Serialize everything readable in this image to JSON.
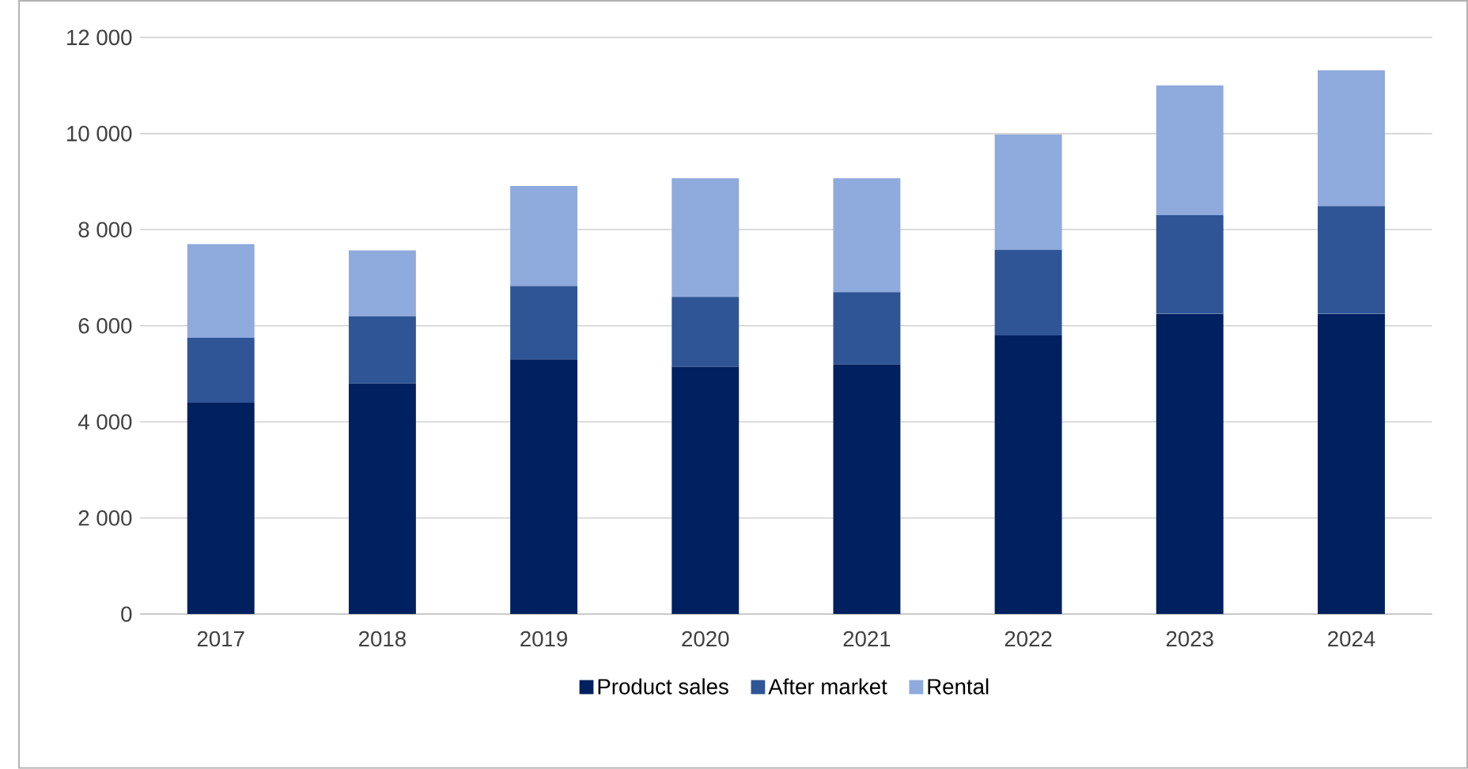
{
  "chart_data": {
    "type": "bar",
    "stacked": true,
    "categories": [
      "2017",
      "2018",
      "2019",
      "2020",
      "2021",
      "2022",
      "2023",
      "2024"
    ],
    "series": [
      {
        "name": "Product sales",
        "color": "#002060",
        "values": [
          4400,
          4800,
          5300,
          5150,
          5200,
          5800,
          6250,
          6250
        ]
      },
      {
        "name": "After market",
        "color": "#2f5597",
        "values": [
          1350,
          1400,
          1530,
          1450,
          1500,
          1780,
          2050,
          2240
        ]
      },
      {
        "name": "Rental",
        "color": "#8faadc",
        "values": [
          1950,
          1370,
          2080,
          2470,
          2370,
          2400,
          2700,
          2830
        ]
      }
    ],
    "ylim": [
      0,
      12000
    ],
    "yticks": [
      0,
      {
        "value": 2000,
        "label": "2 000"
      },
      {
        "value": 4000,
        "label": "4 000"
      },
      {
        "value": 6000,
        "label": "6 000"
      },
      {
        "value": 8000,
        "label": "8 000"
      },
      {
        "value": 10000,
        "label": "10 000"
      },
      {
        "value": 12000,
        "label": "12 000"
      }
    ],
    "grid": "y",
    "legend": "bottom"
  }
}
